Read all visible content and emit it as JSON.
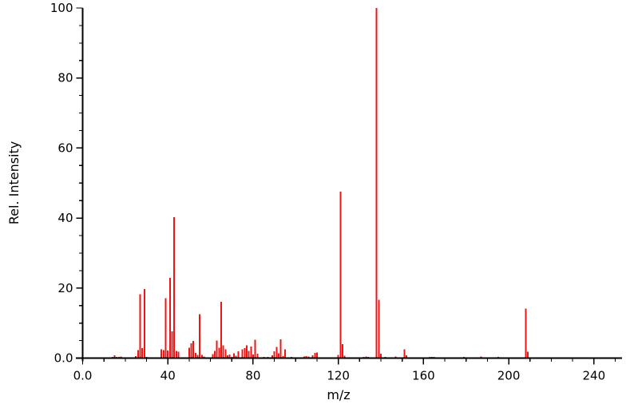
{
  "chart_data": {
    "type": "bar",
    "subtype": "mass-spectrum",
    "title": "",
    "xlabel": "m/z",
    "ylabel": "Rel. Intensity",
    "xlim": [
      0,
      240
    ],
    "ylim": [
      0,
      100
    ],
    "x_major_ticks": [
      0,
      40,
      80,
      120,
      160,
      200,
      240
    ],
    "x_major_tick_labels": [
      "0.0",
      "40",
      "80",
      "120",
      "160",
      "200",
      "240"
    ],
    "x_minor_step": 10,
    "x_minor_max": 250,
    "y_major_ticks": [
      0,
      20,
      40,
      60,
      80,
      100
    ],
    "y_major_tick_labels": [
      "0.0",
      "20",
      "40",
      "60",
      "80",
      "100"
    ],
    "y_minor_step": 5,
    "grid": false,
    "legend": null,
    "bar_color": "#ef1515",
    "axis_color": "#000000",
    "background": "#ffffff",
    "peaks": [
      [
        14,
        0.4
      ],
      [
        15,
        0.8
      ],
      [
        16,
        0.4
      ],
      [
        17,
        0.4
      ],
      [
        18,
        0.5
      ],
      [
        25,
        0.6
      ],
      [
        26,
        2.3
      ],
      [
        27,
        18.2
      ],
      [
        28,
        2.9
      ],
      [
        29,
        19.7
      ],
      [
        30,
        0.4
      ],
      [
        37,
        2.5
      ],
      [
        38,
        2.3
      ],
      [
        39,
        17.1
      ],
      [
        40,
        2.2
      ],
      [
        41,
        22.9
      ],
      [
        42,
        7.6
      ],
      [
        43,
        40.2
      ],
      [
        44,
        2.0
      ],
      [
        45,
        1.8
      ],
      [
        50,
        3.0
      ],
      [
        51,
        4.2
      ],
      [
        52,
        4.9
      ],
      [
        53,
        1.5
      ],
      [
        54,
        0.9
      ],
      [
        55,
        12.6
      ],
      [
        56,
        0.9
      ],
      [
        57,
        0.5
      ],
      [
        61,
        1.1
      ],
      [
        62,
        2.1
      ],
      [
        63,
        5.0
      ],
      [
        64,
        3.0
      ],
      [
        65,
        16.1
      ],
      [
        66,
        3.6
      ],
      [
        67,
        2.5
      ],
      [
        68,
        0.8
      ],
      [
        69,
        1.0
      ],
      [
        70,
        0.4
      ],
      [
        71,
        1.4
      ],
      [
        72,
        0.7
      ],
      [
        73,
        1.9
      ],
      [
        75,
        2.5
      ],
      [
        76,
        2.9
      ],
      [
        77,
        3.6
      ],
      [
        78,
        2.1
      ],
      [
        79,
        3.3
      ],
      [
        80,
        1.0
      ],
      [
        81,
        5.2
      ],
      [
        82,
        1.2
      ],
      [
        85,
        0.4
      ],
      [
        87,
        0.3
      ],
      [
        89,
        0.8
      ],
      [
        90,
        1.9
      ],
      [
        91,
        3.2
      ],
      [
        92,
        1.4
      ],
      [
        93,
        5.4
      ],
      [
        94,
        0.6
      ],
      [
        95,
        2.5
      ],
      [
        98,
        0.3
      ],
      [
        104,
        0.5
      ],
      [
        105,
        0.6
      ],
      [
        106,
        0.5
      ],
      [
        108,
        0.8
      ],
      [
        109,
        1.5
      ],
      [
        110,
        1.6
      ],
      [
        120,
        0.9
      ],
      [
        121,
        47.5
      ],
      [
        122,
        4.0
      ],
      [
        123,
        0.7
      ],
      [
        132,
        0.4
      ],
      [
        133,
        0.5
      ],
      [
        134,
        0.4
      ],
      [
        138,
        100.0
      ],
      [
        139,
        16.6
      ],
      [
        140,
        1.2
      ],
      [
        142,
        0.4
      ],
      [
        147,
        0.5
      ],
      [
        151,
        2.5
      ],
      [
        152,
        0.8
      ],
      [
        163,
        0.4
      ],
      [
        164,
        0.4
      ],
      [
        165,
        0.3
      ],
      [
        179,
        0.4
      ],
      [
        187,
        0.5
      ],
      [
        195,
        0.3
      ],
      [
        208,
        14.1
      ],
      [
        209,
        1.8
      ]
    ]
  }
}
